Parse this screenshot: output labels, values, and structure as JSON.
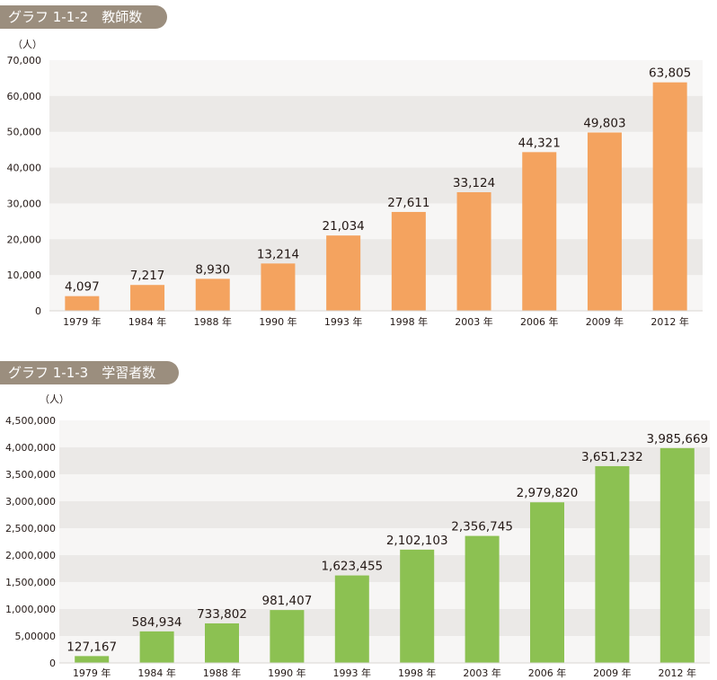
{
  "charts": [
    {
      "id": "teachers",
      "badge": "グラフ 1-1-2　教師数",
      "unit": "（人）",
      "bar_color": "#f4a35f",
      "chart_data": {
        "type": "bar",
        "title": "グラフ 1-1-2　教師数",
        "ylabel": "（人）",
        "xlabel": "",
        "categories": [
          "1979 年",
          "1984 年",
          "1988 年",
          "1990 年",
          "1993 年",
          "1998 年",
          "2003 年",
          "2006 年",
          "2009 年",
          "2012 年"
        ],
        "values": [
          4097,
          7217,
          8930,
          13214,
          21034,
          27611,
          33124,
          44321,
          49803,
          63805
        ],
        "value_labels": [
          "4,097",
          "7,217",
          "8,930",
          "13,214",
          "21,034",
          "27,611",
          "33,124",
          "44,321",
          "49,803",
          "63,805"
        ],
        "ylim": [
          0,
          70000
        ],
        "yticks": [
          0,
          10000,
          20000,
          30000,
          40000,
          50000,
          60000,
          70000
        ],
        "ytick_labels": [
          "0",
          "10,000",
          "20,000",
          "30,000",
          "40,000",
          "50,000",
          "60,000",
          "70,000"
        ],
        "grid": "alternating bands"
      }
    },
    {
      "id": "learners",
      "badge": "グラフ 1-1-3　学習者数",
      "unit": "（人）",
      "bar_color": "#8cc152",
      "chart_data": {
        "type": "bar",
        "title": "グラフ 1-1-3　学習者数",
        "ylabel": "（人）",
        "xlabel": "",
        "categories": [
          "1979 年",
          "1984 年",
          "1988 年",
          "1990 年",
          "1993 年",
          "1998 年",
          "2003 年",
          "2006 年",
          "2009 年",
          "2012 年"
        ],
        "values": [
          127167,
          584934,
          733802,
          981407,
          1623455,
          2102103,
          2356745,
          2979820,
          3651232,
          3985669
        ],
        "value_labels": [
          "127,167",
          "584,934",
          "733,802",
          "981,407",
          "1,623,455",
          "2,102,103",
          "2,356,745",
          "2,979,820",
          "3,651,232",
          "3,985,669"
        ],
        "ylim": [
          0,
          4500000
        ],
        "yticks": [
          0,
          500000,
          1000000,
          1500000,
          2000000,
          2500000,
          3000000,
          3500000,
          4000000,
          4500000
        ],
        "ytick_labels": [
          "0",
          "5,00000",
          "1,000,000",
          "1,500,000",
          "2,000,000",
          "2,500,000",
          "3,000,000",
          "3,500,000",
          "4,000,000",
          "4,500,000"
        ],
        "grid": "alternating bands"
      }
    }
  ]
}
